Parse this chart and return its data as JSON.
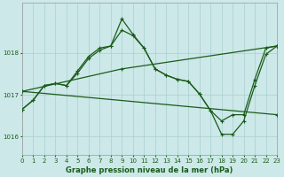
{
  "title": "Graphe pression niveau de la mer (hPa)",
  "bg_color": "#cce8e8",
  "line_color": "#1a5c1a",
  "grid_color": "#aacfcf",
  "series": [
    {
      "x": [
        0,
        1,
        2,
        3,
        4,
        5,
        6,
        7,
        8,
        9,
        10,
        11,
        12,
        13,
        14,
        15,
        16,
        17,
        18,
        19,
        20,
        21,
        22,
        23
      ],
      "y": [
        1016.65,
        1016.87,
        1017.22,
        1017.27,
        1017.22,
        1017.57,
        1017.92,
        1018.12,
        1018.17,
        1018.82,
        1018.45,
        1018.12,
        1017.62,
        1017.47,
        1017.37,
        1017.32,
        1017.02,
        1016.62,
        1016.05,
        1016.05,
        1016.37,
        1017.22,
        1017.97,
        1018.17
      ]
    },
    {
      "x": [
        0,
        1,
        2,
        3,
        4,
        5,
        6,
        7,
        8,
        9,
        10,
        11,
        12,
        13,
        14,
        15,
        16,
        17,
        18,
        19,
        20,
        21,
        22,
        23
      ],
      "y": [
        1016.65,
        1016.87,
        1017.22,
        1017.27,
        1017.22,
        1017.52,
        1017.87,
        1018.07,
        1018.17,
        1018.55,
        1018.42,
        1018.12,
        1017.62,
        1017.47,
        1017.37,
        1017.32,
        1017.02,
        1016.62,
        1016.37,
        1016.52,
        1016.52,
        1017.37,
        1018.12,
        1018.17
      ]
    },
    {
      "x": [
        0,
        23
      ],
      "y": [
        1017.08,
        1016.52
      ]
    },
    {
      "x": [
        0,
        9,
        23
      ],
      "y": [
        1017.08,
        1017.62,
        1018.17
      ]
    }
  ],
  "xlim": [
    0,
    23
  ],
  "ylim": [
    1015.55,
    1019.2
  ],
  "yticks": [
    1016,
    1017,
    1018
  ],
  "xticks": [
    0,
    1,
    2,
    3,
    4,
    5,
    6,
    7,
    8,
    9,
    10,
    11,
    12,
    13,
    14,
    15,
    16,
    17,
    18,
    19,
    20,
    21,
    22,
    23
  ],
  "title_fontsize": 6.0,
  "tick_fontsize": 5.0,
  "marker": "+"
}
